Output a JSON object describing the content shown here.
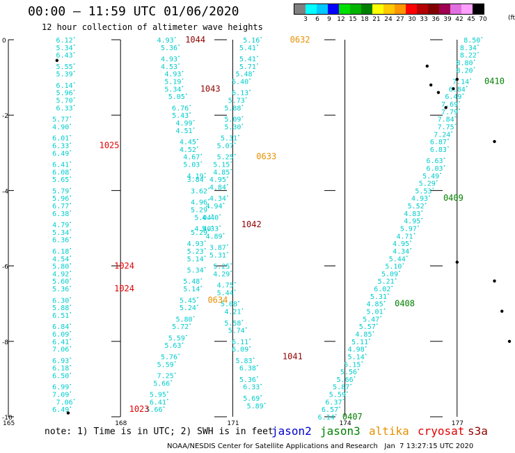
{
  "header": {
    "title": "00:00 – 11:59 UTC 01/06/2020",
    "subtitle": "12 hour collection of altimeter wave heights"
  },
  "legend": {
    "colors": [
      "#808080",
      "#00ffff",
      "#00c8ff",
      "#0000ff",
      "#00e000",
      "#00b400",
      "#008000",
      "#ffff00",
      "#ffc800",
      "#ff9600",
      "#ff0000",
      "#b40000",
      "#800000",
      "#a00050",
      "#e070e0",
      "#ffa0ff",
      "#000000"
    ],
    "labels": [
      "3",
      "6",
      "9",
      "12",
      "15",
      "18",
      "21",
      "24",
      "27",
      "30",
      "33",
      "36",
      "39",
      "42",
      "45",
      "70"
    ],
    "unit": "(ft)"
  },
  "axes": {
    "y_ticks": [
      "0",
      "-2",
      "-4",
      "-6",
      "-8",
      "-10"
    ],
    "x_ticks": [
      "165",
      "168",
      "171",
      "174",
      "177"
    ]
  },
  "map": {
    "lon_range": [
      165,
      178.4
    ],
    "lat_range": [
      -10,
      0
    ],
    "island_color": "#000000",
    "track_color": "#00cccc"
  },
  "time_colors": {
    "red": "#e00000",
    "darkred": "#900000",
    "orange": "#e69000",
    "green": "#008000"
  },
  "tracks": [
    {
      "id": "track-1",
      "color": "#00cccc",
      "points": [
        [
          166.5,
          0,
          "6.12"
        ],
        [
          166.5,
          -0.2,
          "5.34"
        ],
        [
          166.5,
          -0.4,
          "6.43"
        ],
        [
          166.5,
          -0.7,
          "5.55"
        ],
        [
          166.5,
          -0.9,
          "5.39"
        ],
        [
          166.5,
          -1.2,
          "6.14"
        ],
        [
          166.5,
          -1.4,
          "5.96"
        ],
        [
          166.5,
          -1.6,
          "5.70"
        ],
        [
          166.5,
          -1.8,
          "6.33"
        ],
        [
          166.4,
          -2.1,
          "5.77"
        ],
        [
          166.4,
          -2.3,
          "4.90"
        ],
        [
          166.4,
          -2.6,
          "6.01"
        ],
        [
          166.4,
          -2.8,
          "6.33"
        ],
        [
          166.4,
          -3,
          "6.49"
        ],
        [
          166.4,
          -3.3,
          "6.41"
        ],
        [
          166.4,
          -3.5,
          "6.08"
        ],
        [
          166.4,
          -3.7,
          "5.65"
        ],
        [
          166.4,
          -4,
          "5.79"
        ],
        [
          166.4,
          -4.2,
          "5.96"
        ],
        [
          166.4,
          -4.4,
          "6.77"
        ],
        [
          166.4,
          -4.6,
          "6.38"
        ],
        [
          166.4,
          -4.9,
          "4.79"
        ],
        [
          166.4,
          -5.1,
          "5.34"
        ],
        [
          166.4,
          -5.3,
          "6.36"
        ],
        [
          166.4,
          -5.6,
          "6.18"
        ],
        [
          166.4,
          -5.8,
          "4.54"
        ],
        [
          166.4,
          -6,
          "5.80"
        ],
        [
          166.4,
          -6.2,
          "4.92"
        ],
        [
          166.4,
          -6.4,
          "5.60"
        ],
        [
          166.4,
          -6.6,
          "5.36"
        ],
        [
          166.4,
          -6.9,
          "6.30"
        ],
        [
          166.4,
          -7.1,
          "5.88"
        ],
        [
          166.4,
          -7.3,
          "6.51"
        ],
        [
          166.4,
          -7.6,
          "6.84"
        ],
        [
          166.4,
          -7.8,
          "6.09"
        ],
        [
          166.4,
          -8,
          "6.41"
        ],
        [
          166.4,
          -8.2,
          "7.06"
        ],
        [
          166.4,
          -8.5,
          "6.93"
        ],
        [
          166.4,
          -8.7,
          "6.18"
        ],
        [
          166.4,
          -8.9,
          "6.50"
        ],
        [
          166.4,
          -9.2,
          "6.99"
        ],
        [
          166.4,
          -9.4,
          "7.09"
        ],
        [
          166.5,
          -9.6,
          "7.06"
        ],
        [
          166.4,
          -9.8,
          "6.49"
        ]
      ]
    },
    {
      "id": "track-2",
      "color": "#00cccc",
      "points": [
        [
          169.2,
          0,
          "4.93"
        ],
        [
          169.3,
          -0.2,
          "5.36"
        ],
        [
          169.3,
          -0.5,
          "4.93"
        ],
        [
          169.3,
          -0.7,
          "4.53"
        ],
        [
          169.4,
          -0.9,
          "4.93"
        ],
        [
          169.4,
          -1.1,
          "5.19"
        ],
        [
          169.4,
          -1.3,
          "5.34"
        ],
        [
          169.5,
          -1.5,
          "5.05"
        ],
        [
          169.6,
          -1.8,
          "6.76"
        ],
        [
          169.6,
          -2,
          "5.43"
        ],
        [
          169.7,
          -2.2,
          "4.99"
        ],
        [
          169.7,
          -2.4,
          "4.51"
        ],
        [
          169.8,
          -2.7,
          "4.45"
        ],
        [
          169.8,
          -2.9,
          "4.52"
        ],
        [
          169.9,
          -3.1,
          "4.67"
        ],
        [
          169.9,
          -3.3,
          "5.03"
        ],
        [
          170,
          -3.6,
          "4.19"
        ],
        [
          170,
          -3.7,
          "3.84"
        ],
        [
          170.1,
          -4,
          "3.62"
        ],
        [
          170.1,
          -4.3,
          "4.96"
        ],
        [
          170.1,
          -4.5,
          "5.29"
        ],
        [
          170.2,
          -4.7,
          "5.04"
        ],
        [
          170.2,
          -5,
          "4.40"
        ],
        [
          170.1,
          -5.1,
          "5.29"
        ],
        [
          170,
          -5.4,
          "4.93"
        ],
        [
          170,
          -5.6,
          "5.23"
        ],
        [
          170,
          -5.8,
          "5.14"
        ],
        [
          170,
          -6.1,
          "5.34"
        ],
        [
          169.9,
          -6.4,
          "5.48"
        ],
        [
          169.9,
          -6.6,
          "5.14"
        ],
        [
          169.8,
          -6.9,
          "5.45"
        ],
        [
          169.8,
          -7.1,
          "5.24"
        ],
        [
          169.7,
          -7.4,
          "5.80"
        ],
        [
          169.6,
          -7.6,
          "5.72"
        ],
        [
          169.5,
          -7.9,
          "5.59"
        ],
        [
          169.4,
          -8.1,
          "5.63"
        ],
        [
          169.3,
          -8.4,
          "5.76"
        ],
        [
          169.2,
          -8.6,
          "5.59"
        ],
        [
          169.2,
          -8.9,
          "7.25"
        ],
        [
          169.1,
          -9.1,
          "5.66"
        ],
        [
          169,
          -9.4,
          "5.95"
        ],
        [
          169,
          -9.6,
          "6.41"
        ],
        [
          168.9,
          -9.8,
          "5.66"
        ]
      ]
    },
    {
      "id": "track-3",
      "color": "#00cccc",
      "points": [
        [
          171.5,
          0,
          "5.16"
        ],
        [
          171.4,
          -0.2,
          "5.41"
        ],
        [
          171.4,
          -0.5,
          "5.41"
        ],
        [
          171.4,
          -0.7,
          "5.71"
        ],
        [
          171.3,
          -0.9,
          "5.48"
        ],
        [
          171.2,
          -1.1,
          "5.40"
        ],
        [
          171.2,
          -1.4,
          "6.13"
        ],
        [
          171.1,
          -1.6,
          "5.73"
        ],
        [
          171,
          -1.8,
          "5.88"
        ],
        [
          171,
          -2.1,
          "5.09"
        ],
        [
          171,
          -2.3,
          "5.30"
        ],
        [
          170.9,
          -2.6,
          "5.31"
        ],
        [
          170.8,
          -2.8,
          "5.07"
        ],
        [
          170.8,
          -3.1,
          "5.25"
        ],
        [
          170.7,
          -3.3,
          "5.15"
        ],
        [
          170.7,
          -3.5,
          "4.85"
        ],
        [
          170.6,
          -3.7,
          "4.95"
        ],
        [
          170.6,
          -3.9,
          "4.84"
        ],
        [
          170.6,
          -4.2,
          "4.34"
        ],
        [
          170.5,
          -4.4,
          "4.94"
        ],
        [
          170.4,
          -4.7,
          "4.40"
        ],
        [
          170.4,
          -5,
          "5.33"
        ],
        [
          170.5,
          -5.2,
          "4.89"
        ],
        [
          170.6,
          -5.5,
          "3.87"
        ],
        [
          170.6,
          -5.7,
          "5.31"
        ],
        [
          170.7,
          -6,
          "5.25"
        ],
        [
          170.7,
          -6.2,
          "4.29"
        ],
        [
          170.8,
          -6.5,
          "4.75"
        ],
        [
          170.8,
          -6.7,
          "5.44"
        ],
        [
          170.9,
          -7,
          "5.08"
        ],
        [
          171,
          -7.2,
          "4.21"
        ],
        [
          171,
          -7.5,
          "5.58"
        ],
        [
          171.1,
          -7.7,
          "5.74"
        ],
        [
          171.2,
          -8,
          "6.11"
        ],
        [
          171.2,
          -8.2,
          "6.09"
        ],
        [
          171.3,
          -8.5,
          "5.83"
        ],
        [
          171.4,
          -8.7,
          "6.38"
        ],
        [
          171.4,
          -9,
          "5.36"
        ],
        [
          171.5,
          -9.2,
          "6.33"
        ],
        [
          171.5,
          -9.5,
          "5.69"
        ],
        [
          171.6,
          -9.7,
          "5.89"
        ]
      ]
    },
    {
      "id": "track-4",
      "color": "#00cccc",
      "points": [
        [
          177.4,
          0,
          "8.50"
        ],
        [
          177.3,
          -0.2,
          "8.34"
        ],
        [
          177.3,
          -0.4,
          "8.22"
        ],
        [
          177.2,
          -0.6,
          "8.80"
        ],
        [
          177.2,
          -0.8,
          "8.20"
        ],
        [
          177.1,
          -1.1,
          "7.14"
        ],
        [
          177,
          -1.3,
          "6.84"
        ],
        [
          176.9,
          -1.5,
          "6.49"
        ],
        [
          176.8,
          -1.7,
          "7.69"
        ],
        [
          176.8,
          -1.9,
          "7.79"
        ],
        [
          176.7,
          -2.1,
          "7.84"
        ],
        [
          176.7,
          -2.3,
          "7.75"
        ],
        [
          176.6,
          -2.5,
          "7.24"
        ],
        [
          176.5,
          -2.7,
          "6.87"
        ],
        [
          176.5,
          -2.9,
          "6.83"
        ],
        [
          176.4,
          -3.2,
          "6.63"
        ],
        [
          176.4,
          -3.4,
          "6.03"
        ],
        [
          176.3,
          -3.6,
          "5.49"
        ],
        [
          176.2,
          -3.8,
          "5.29"
        ],
        [
          176.1,
          -4,
          "5.53"
        ],
        [
          176,
          -4.2,
          "4.93"
        ],
        [
          175.9,
          -4.4,
          "5.52"
        ],
        [
          175.8,
          -4.6,
          "4.83"
        ],
        [
          175.8,
          -4.8,
          "4.95"
        ],
        [
          175.7,
          -5,
          "5.97"
        ],
        [
          175.6,
          -5.2,
          "4.71"
        ],
        [
          175.5,
          -5.4,
          "4.95"
        ],
        [
          175.5,
          -5.6,
          "4.34"
        ],
        [
          175.4,
          -5.8,
          "5.44"
        ],
        [
          175.3,
          -6,
          "5.10"
        ],
        [
          175.2,
          -6.2,
          "5.09"
        ],
        [
          175.1,
          -6.4,
          "5.21"
        ],
        [
          175,
          -6.6,
          "6.02"
        ],
        [
          174.9,
          -6.8,
          "5.31"
        ],
        [
          174.8,
          -7,
          "4.85"
        ],
        [
          174.8,
          -7.2,
          "5.01"
        ],
        [
          174.7,
          -7.4,
          "5.47"
        ],
        [
          174.6,
          -7.6,
          "5.57"
        ],
        [
          174.5,
          -7.8,
          "4.85"
        ],
        [
          174.4,
          -8,
          "5.11"
        ],
        [
          174.3,
          -8.2,
          "4.98"
        ],
        [
          174.3,
          -8.4,
          "5.14"
        ],
        [
          174.2,
          -8.6,
          "5.15"
        ],
        [
          174.1,
          -8.8,
          "5.56"
        ],
        [
          174,
          -9,
          "5.66"
        ],
        [
          173.9,
          -9.2,
          "5.87"
        ],
        [
          173.8,
          -9.4,
          "5.59"
        ],
        [
          173.7,
          -9.6,
          "6.37"
        ],
        [
          173.6,
          -9.8,
          "6.57"
        ],
        [
          173.5,
          -10,
          "6.14"
        ]
      ]
    }
  ],
  "time_labels": [
    {
      "text": "1044",
      "lon": 170,
      "lat": 0,
      "color": "darkred"
    },
    {
      "text": "0632",
      "lon": 172.8,
      "lat": 0,
      "color": "orange"
    },
    {
      "text": "1043",
      "lon": 170.4,
      "lat": -1.3,
      "color": "darkred"
    },
    {
      "text": "1025",
      "lon": 167.7,
      "lat": -2.8,
      "color": "red"
    },
    {
      "text": "0633",
      "lon": 171.9,
      "lat": -3.1,
      "color": "orange"
    },
    {
      "text": "1042",
      "lon": 171.5,
      "lat": -4.9,
      "color": "darkred"
    },
    {
      "text": "1024",
      "lon": 168.1,
      "lat": -6,
      "color": "red"
    },
    {
      "text": "1024",
      "lon": 168.1,
      "lat": -6.6,
      "color": "red"
    },
    {
      "text": "0634",
      "lon": 170.6,
      "lat": -6.9,
      "color": "orange"
    },
    {
      "text": "1041",
      "lon": 172.6,
      "lat": -8.4,
      "color": "darkred"
    },
    {
      "text": "1023",
      "lon": 168.5,
      "lat": -9.8,
      "color": "red"
    },
    {
      "text": "0407",
      "lon": 174.2,
      "lat": -10,
      "color": "green"
    },
    {
      "text": "0410",
      "lon": 178,
      "lat": -1.1,
      "color": "green"
    },
    {
      "text": "0409",
      "lon": 176.9,
      "lat": -4.2,
      "color": "green"
    },
    {
      "text": "0408",
      "lon": 175.6,
      "lat": -7,
      "color": "green"
    }
  ],
  "islands": [
    {
      "lon": 166.3,
      "lat": -0.55
    },
    {
      "lon": 166.6,
      "lat": -9.9
    },
    {
      "lon": 176.2,
      "lat": -0.7
    },
    {
      "lon": 176.3,
      "lat": -1.2
    },
    {
      "lon": 176.5,
      "lat": -1.4
    },
    {
      "lon": 176.9,
      "lat": -1.3
    },
    {
      "lon": 177.0,
      "lat": -1.05
    },
    {
      "lon": 176.7,
      "lat": -1.8
    },
    {
      "lon": 178.0,
      "lat": -2.7
    },
    {
      "lon": 177.0,
      "lat": -5.9
    },
    {
      "lon": 178.0,
      "lat": -6.4
    },
    {
      "lon": 178.2,
      "lat": -7.2
    },
    {
      "lon": 179.3,
      "lat": -7.4
    },
    {
      "lon": 178.4,
      "lat": -8.0
    }
  ],
  "footer": {
    "note": "note: 1) Time is in UTC; 2) SWH is in feet",
    "satellites": [
      {
        "name": "jason2",
        "color": "#0000cc"
      },
      {
        "name": "jason3",
        "color": "#008000"
      },
      {
        "name": "altika",
        "color": "#e69000"
      },
      {
        "name": "cryosat",
        "color": "#e00000"
      },
      {
        "name": "s3a",
        "color": "#900000"
      }
    ],
    "credit": "NOAA/NESDIS Center for Satellite Applications and Research   Jan  7 13:27:15 UTC 2020"
  }
}
